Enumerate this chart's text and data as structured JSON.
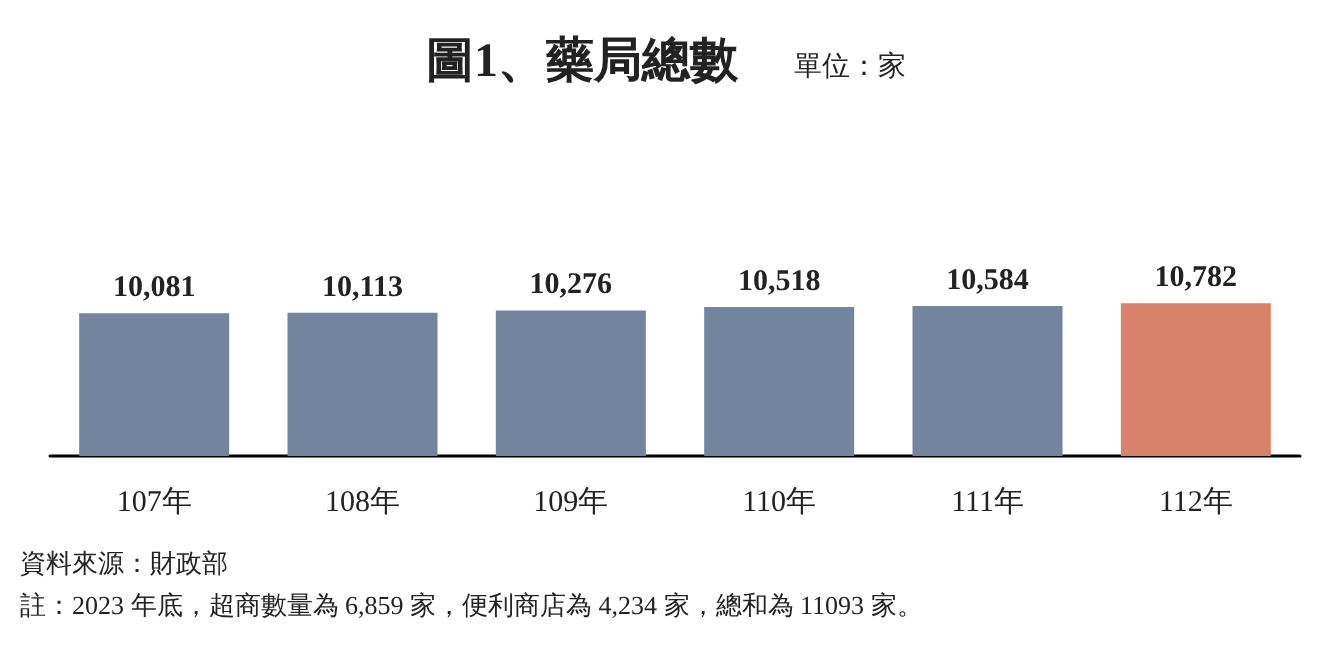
{
  "chart_data": {
    "type": "bar",
    "title": "圖1、藥局總數",
    "subtitle": "單位：家",
    "categories": [
      "107年",
      "108年",
      "109年",
      "110年",
      "111年",
      "112年"
    ],
    "values": [
      10081,
      10113,
      10276,
      10518,
      10584,
      10782
    ],
    "colors": [
      "#72849e",
      "#72849e",
      "#72849e",
      "#72849e",
      "#72849e",
      "#d9826a"
    ],
    "value_labels": [
      "10,081",
      "10,113",
      "10,276",
      "10,518",
      "10,584",
      "10,782"
    ],
    "annotations": [
      "資料來源：財政部",
      "註：2023 年底，超商數量為 6,859 家，便利商店為 4,234 家，總和為 11093 家。"
    ]
  }
}
